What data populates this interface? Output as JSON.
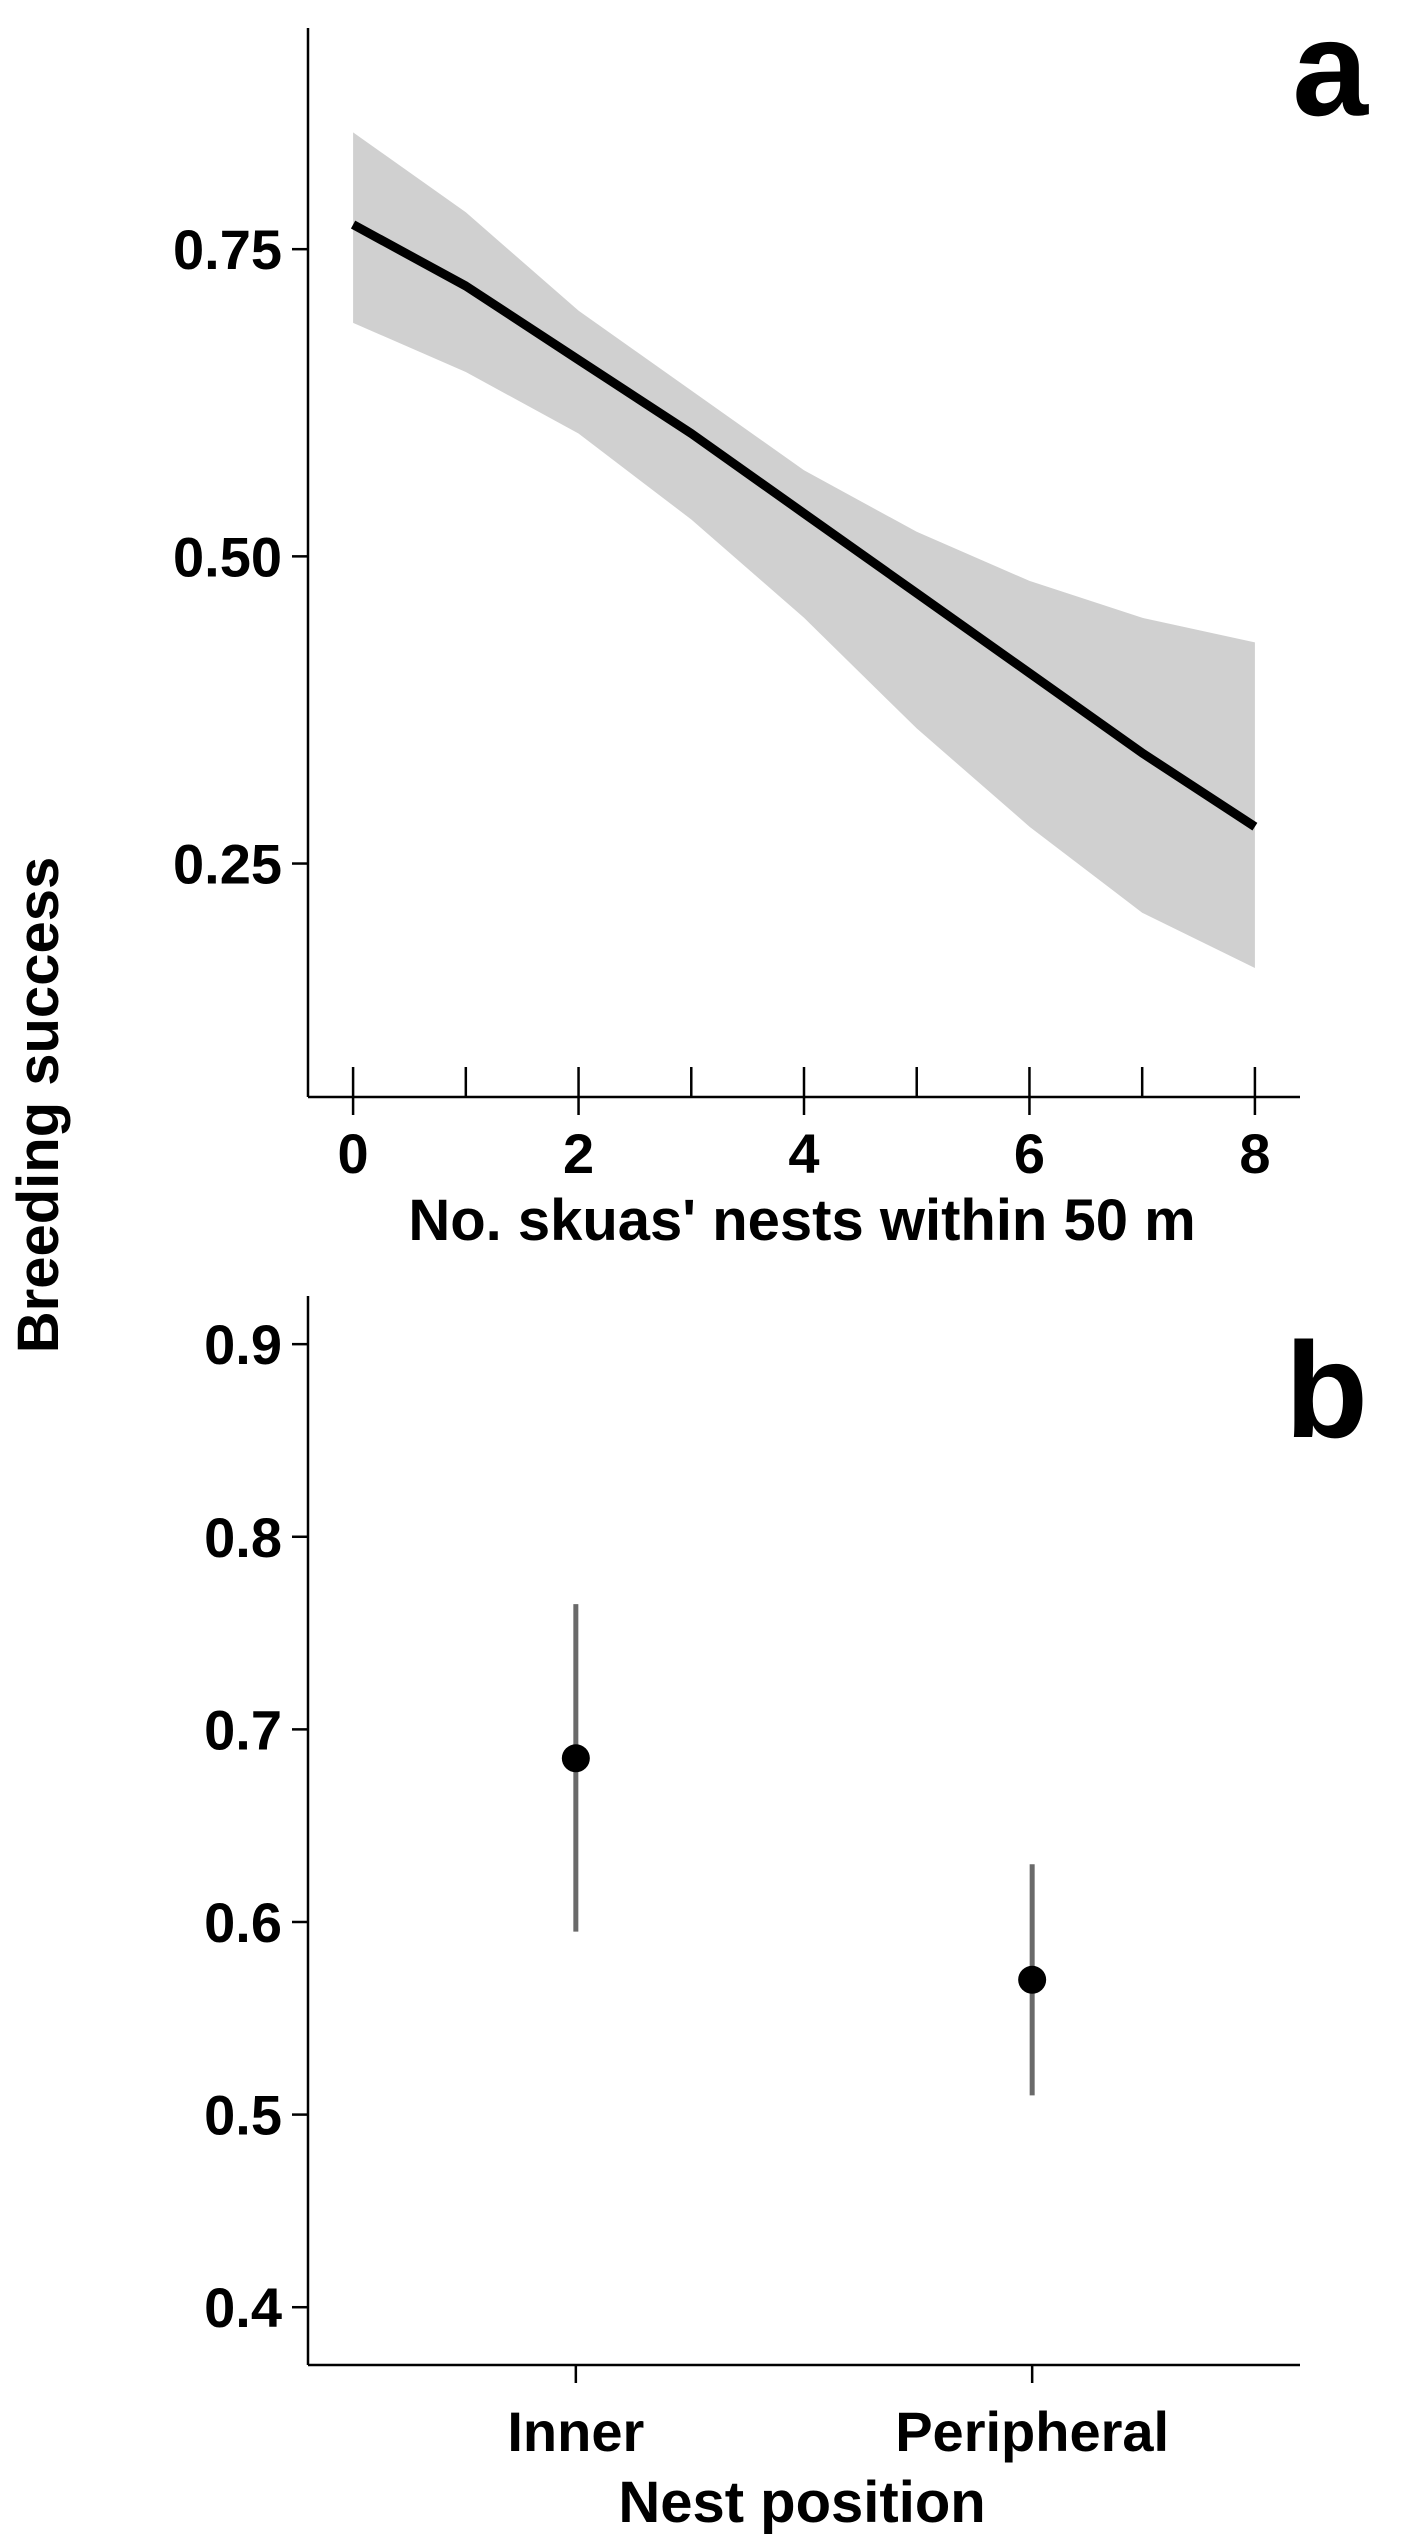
{
  "chart_data": [
    {
      "type": "line",
      "panel_label": "a",
      "xlabel": "No. skuas' nests within 50 m",
      "ylabel": "Breeding success",
      "xlim": [
        -0.4,
        8.4
      ],
      "ylim": [
        0.06,
        0.93
      ],
      "x_ticks": [
        "0",
        "2",
        "4",
        "6",
        "8"
      ],
      "x_minor_ticks": [
        1,
        3,
        5,
        7
      ],
      "y_ticks": [
        "0.25",
        "0.50",
        "0.75"
      ],
      "grid": false,
      "series": [
        {
          "name": "fit",
          "x": [
            0,
            1,
            2,
            3,
            4,
            5,
            6,
            7,
            8
          ],
          "y": [
            0.77,
            0.72,
            0.66,
            0.6,
            0.535,
            0.47,
            0.405,
            0.34,
            0.28
          ],
          "lower": [
            0.69,
            0.65,
            0.6,
            0.53,
            0.45,
            0.36,
            0.28,
            0.21,
            0.165
          ],
          "upper": [
            0.845,
            0.78,
            0.7,
            0.635,
            0.57,
            0.52,
            0.48,
            0.45,
            0.43
          ]
        }
      ]
    },
    {
      "type": "scatter",
      "panel_label": "b",
      "xlabel": "Nest position",
      "ylabel": "Breeding success",
      "categories": [
        "Inner",
        "Peripheral"
      ],
      "ylim": [
        0.37,
        0.925
      ],
      "y_ticks": [
        "0.4",
        "0.5",
        "0.6",
        "0.7",
        "0.8",
        "0.9"
      ],
      "grid": false,
      "points": [
        {
          "category": "Inner",
          "value": 0.685,
          "lower": 0.595,
          "upper": 0.765
        },
        {
          "category": "Peripheral",
          "value": 0.57,
          "lower": 0.51,
          "upper": 0.63
        }
      ]
    }
  ],
  "shared_ylabel": "Breeding success"
}
